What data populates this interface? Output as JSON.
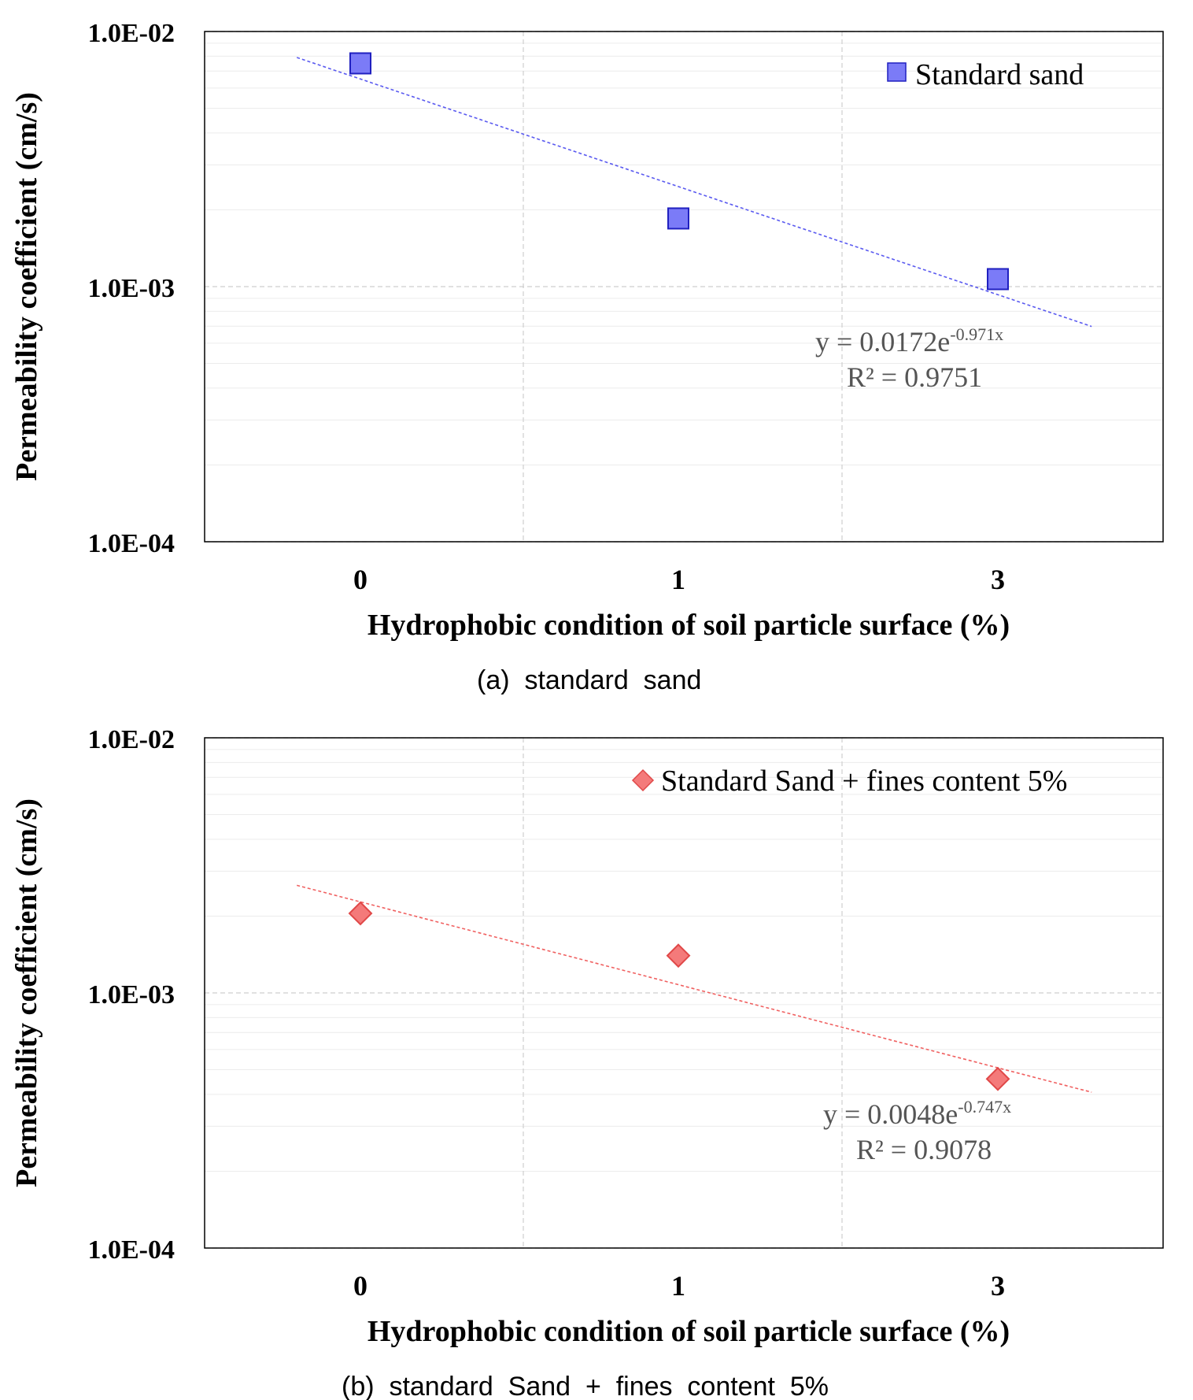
{
  "chart_data": [
    {
      "type": "scatter",
      "y_scale": "log",
      "ylim": [
        0.0001,
        0.01
      ],
      "yticks": [
        "1.0E-02",
        "1.0E-03",
        "1.0E-04"
      ],
      "ytick_values": [
        0.01,
        0.001,
        0.0001
      ],
      "categories": [
        "0",
        "1",
        "3"
      ],
      "xlabel": "Hydrophobic condition of soil particle surface (%)",
      "ylabel": "Permeability coefficient (cm/s)",
      "series": [
        {
          "name": "Standard sand",
          "marker": "square",
          "color": "#7b7bf7",
          "edge": "#2020c0",
          "values": [
            0.0075,
            0.00185,
            0.00107
          ]
        }
      ],
      "trendline": {
        "type": "exponential",
        "a": 0.0172,
        "b": -0.971,
        "color": "#5a5af0",
        "eq_prefix": "y = 0.0172e",
        "eq_exp": "-0.971x",
        "r2_text": "R² = 0.9751"
      },
      "legend_position": "top-right",
      "caption": "(a)  standard  sand",
      "grid": true
    },
    {
      "type": "scatter",
      "y_scale": "log",
      "ylim": [
        0.0001,
        0.01
      ],
      "yticks": [
        "1.0E-02",
        "1.0E-03",
        "1.0E-04"
      ],
      "ytick_values": [
        0.01,
        0.001,
        0.0001
      ],
      "categories": [
        "0",
        "1",
        "3"
      ],
      "xlabel": "Hydrophobic condition of soil particle surface (%)",
      "ylabel": "Permeability coefficient (cm/s)",
      "series": [
        {
          "name": "Standard Sand + fines content 5%",
          "marker": "diamond",
          "color": "#f47a7a",
          "edge": "#e04848",
          "values": [
            0.00205,
            0.0014,
            0.00046
          ]
        }
      ],
      "trendline": {
        "type": "exponential",
        "a": 0.0048,
        "b": -0.747,
        "color": "#f06060",
        "eq_prefix": "y = 0.0048e",
        "eq_exp": "-0.747x",
        "r2_text": "R² = 0.9078"
      },
      "legend_position": "top-right",
      "caption": "(b)  standard  Sand  +  fines  content  5%",
      "grid": true
    }
  ]
}
